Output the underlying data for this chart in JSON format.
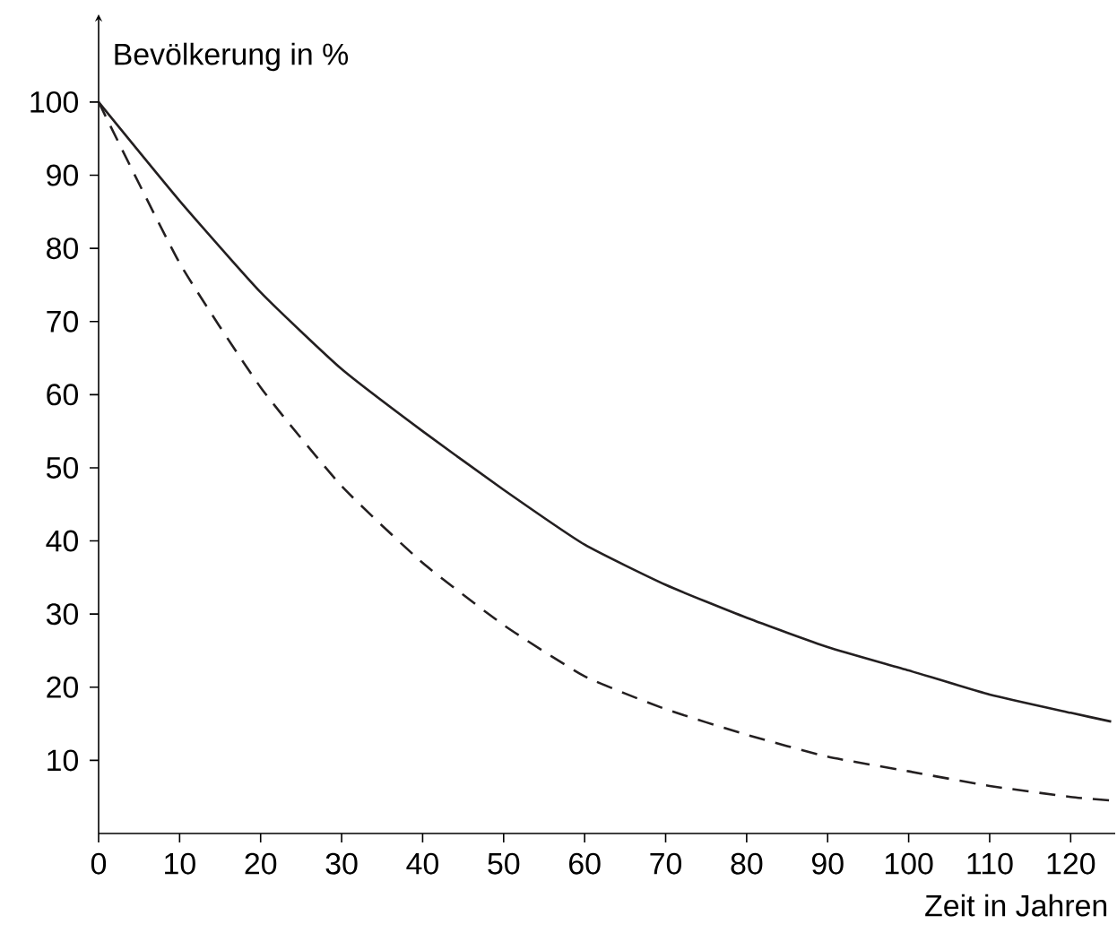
{
  "chart_data": {
    "type": "line",
    "xlabel": "Zeit in Jahren",
    "ylabel": "Bevölkerung in %",
    "x": [
      0,
      10,
      20,
      30,
      40,
      50,
      60,
      70,
      80,
      90,
      100,
      110,
      120,
      125
    ],
    "series": [
      {
        "color": "#231f20",
        "line_style": "solid",
        "values": [
          100,
          86.5,
          74,
          63.5,
          55,
          47,
          39.5,
          34,
          29.5,
          25.5,
          22.3,
          19,
          16.5,
          15.3
        ]
      },
      {
        "color": "#231f20",
        "line_style": "dashed",
        "values": [
          100,
          78,
          61,
          47.5,
          37,
          28.5,
          21.5,
          17,
          13.5,
          10.5,
          8.5,
          6.5,
          5,
          4.5
        ]
      }
    ],
    "xlim": [
      0,
      125.5
    ],
    "ylim": [
      0,
      112
    ],
    "xticks": [
      0,
      10,
      20,
      30,
      40,
      50,
      60,
      70,
      80,
      90,
      100,
      110,
      120
    ],
    "yticks": [
      10,
      20,
      30,
      40,
      50,
      60,
      70,
      80,
      90,
      100
    ]
  }
}
